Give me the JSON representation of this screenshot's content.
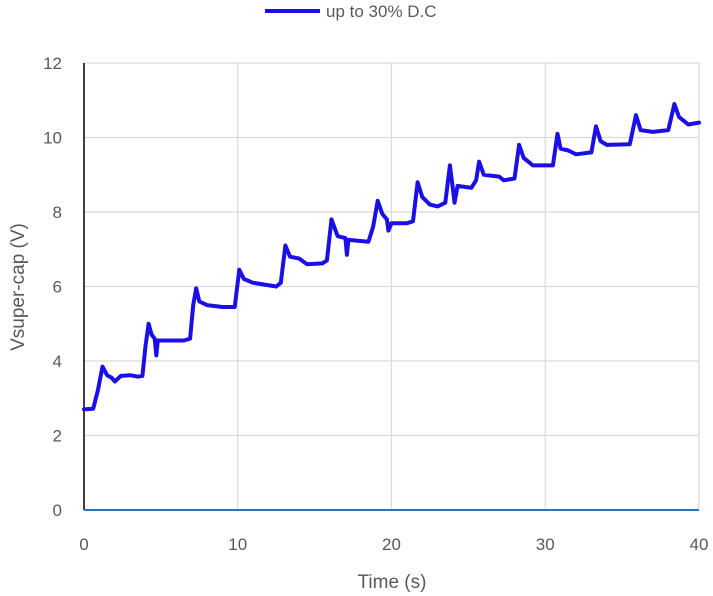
{
  "chart_data": {
    "type": "line",
    "title": "",
    "xlabel": "Time (s)",
    "ylabel": "Vsuper-cap (V)",
    "xlim": [
      0,
      40
    ],
    "ylim": [
      0,
      12
    ],
    "x_ticks": [
      "0",
      "10",
      "20",
      "30",
      "40"
    ],
    "y_ticks": [
      "0",
      "2",
      "4",
      "6",
      "8",
      "10",
      "12"
    ],
    "grid": true,
    "legend_position": "top-center",
    "line_color": "#1a0fe6",
    "baseline_color": "#2e75b6",
    "series": [
      {
        "name": "up to 30% D.C",
        "points": [
          [
            0.0,
            2.7
          ],
          [
            0.6,
            2.72
          ],
          [
            0.9,
            3.2
          ],
          [
            1.2,
            3.85
          ],
          [
            1.5,
            3.62
          ],
          [
            1.8,
            3.55
          ],
          [
            2.0,
            3.45
          ],
          [
            2.4,
            3.6
          ],
          [
            3.0,
            3.62
          ],
          [
            3.5,
            3.58
          ],
          [
            3.8,
            3.6
          ],
          [
            4.0,
            4.4
          ],
          [
            4.2,
            5.0
          ],
          [
            4.4,
            4.7
          ],
          [
            4.6,
            4.6
          ],
          [
            4.7,
            4.15
          ],
          [
            4.8,
            4.55
          ],
          [
            5.5,
            4.55
          ],
          [
            6.5,
            4.55
          ],
          [
            6.9,
            4.6
          ],
          [
            7.1,
            5.5
          ],
          [
            7.3,
            5.95
          ],
          [
            7.5,
            5.6
          ],
          [
            8.0,
            5.5
          ],
          [
            9.0,
            5.45
          ],
          [
            9.8,
            5.45
          ],
          [
            10.1,
            6.45
          ],
          [
            10.4,
            6.2
          ],
          [
            11.0,
            6.1
          ],
          [
            12.5,
            6.0
          ],
          [
            12.8,
            6.1
          ],
          [
            13.1,
            7.1
          ],
          [
            13.4,
            6.8
          ],
          [
            14.0,
            6.75
          ],
          [
            14.5,
            6.6
          ],
          [
            15.5,
            6.62
          ],
          [
            15.8,
            6.7
          ],
          [
            16.1,
            7.8
          ],
          [
            16.5,
            7.35
          ],
          [
            17.0,
            7.3
          ],
          [
            17.1,
            6.85
          ],
          [
            17.2,
            7.25
          ],
          [
            18.5,
            7.2
          ],
          [
            18.8,
            7.6
          ],
          [
            19.1,
            8.3
          ],
          [
            19.4,
            7.95
          ],
          [
            19.7,
            7.8
          ],
          [
            19.8,
            7.5
          ],
          [
            20.0,
            7.7
          ],
          [
            21.0,
            7.7
          ],
          [
            21.4,
            7.75
          ],
          [
            21.7,
            8.8
          ],
          [
            22.0,
            8.4
          ],
          [
            22.5,
            8.2
          ],
          [
            23.0,
            8.15
          ],
          [
            23.5,
            8.25
          ],
          [
            23.8,
            9.25
          ],
          [
            24.0,
            8.6
          ],
          [
            24.1,
            8.25
          ],
          [
            24.3,
            8.7
          ],
          [
            25.2,
            8.65
          ],
          [
            25.5,
            8.85
          ],
          [
            25.7,
            9.35
          ],
          [
            26.0,
            9.0
          ],
          [
            27.0,
            8.95
          ],
          [
            27.3,
            8.85
          ],
          [
            28.0,
            8.9
          ],
          [
            28.3,
            9.8
          ],
          [
            28.6,
            9.45
          ],
          [
            29.2,
            9.25
          ],
          [
            30.5,
            9.25
          ],
          [
            30.8,
            10.1
          ],
          [
            31.0,
            9.7
          ],
          [
            31.5,
            9.65
          ],
          [
            32.0,
            9.55
          ],
          [
            33.0,
            9.6
          ],
          [
            33.3,
            10.3
          ],
          [
            33.6,
            9.9
          ],
          [
            34.0,
            9.8
          ],
          [
            35.5,
            9.82
          ],
          [
            35.9,
            10.6
          ],
          [
            36.2,
            10.2
          ],
          [
            37.0,
            10.15
          ],
          [
            38.0,
            10.2
          ],
          [
            38.4,
            10.9
          ],
          [
            38.7,
            10.55
          ],
          [
            39.0,
            10.45
          ],
          [
            39.3,
            10.35
          ],
          [
            40.0,
            10.4
          ]
        ]
      }
    ]
  }
}
